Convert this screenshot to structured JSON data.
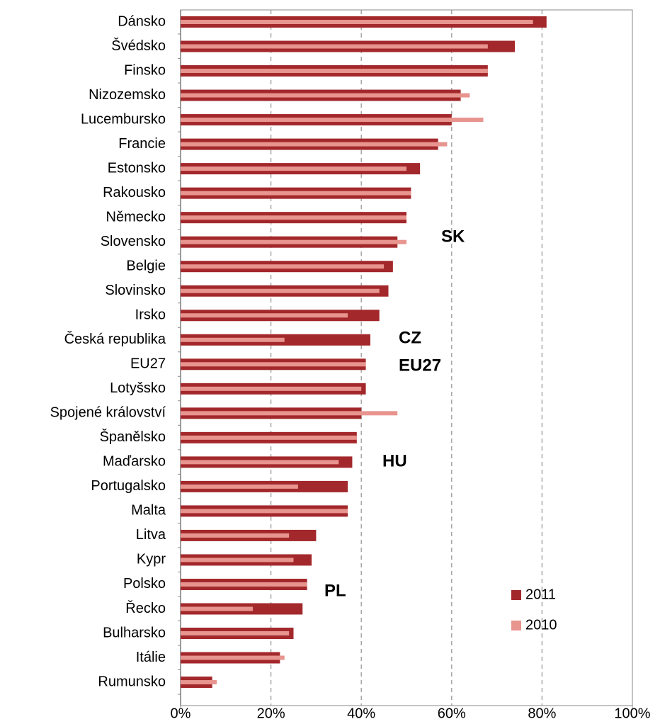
{
  "chart_data": {
    "type": "hbar",
    "categories": [
      "Dánsko",
      "Švédsko",
      "Finsko",
      "Nizozemsko",
      "Lucembursko",
      "Francie",
      "Estonsko",
      "Rakousko",
      "Německo",
      "Slovensko",
      "Belgie",
      "Slovinsko",
      "Irsko",
      "Česká republika",
      "EU27",
      "Lotyšsko",
      "Spojené království",
      "Španělsko",
      "Maďarsko",
      "Portugalsko",
      "Malta",
      "Litva",
      "Kypr",
      "Polsko",
      "Řecko",
      "Bulharsko",
      "Itálie",
      "Rumunsko"
    ],
    "series": [
      {
        "name": "2011",
        "color": "#a3282b",
        "values": [
          81,
          74,
          68,
          62,
          60,
          57,
          53,
          51,
          50,
          48,
          47,
          46,
          44,
          42,
          41,
          41,
          40,
          39,
          38,
          37,
          37,
          30,
          29,
          28,
          27,
          25,
          22,
          7
        ]
      },
      {
        "name": "2010",
        "color": "#e8948f",
        "values": [
          78,
          68,
          68,
          64,
          67,
          59,
          50,
          51,
          50,
          50,
          45,
          44,
          37,
          23,
          41,
          40,
          48,
          39,
          35,
          26,
          37,
          24,
          25,
          28,
          16,
          24,
          23,
          8
        ]
      }
    ],
    "xlim": [
      0,
      100
    ],
    "xticks": [
      {
        "value": 0,
        "label": "0%"
      },
      {
        "value": 20,
        "label": "20%"
      },
      {
        "value": 40,
        "label": "40%"
      },
      {
        "value": 60,
        "label": "60%"
      },
      {
        "value": 80,
        "label": "80%"
      },
      {
        "value": 100,
        "label": "100%"
      }
    ],
    "grid": true,
    "legend": "lower right",
    "annotations": [
      {
        "text": "SK",
        "color": "#000000"
      },
      {
        "text": "CZ",
        "color": "#000000"
      },
      {
        "text": "EU27",
        "color": "#a3132b"
      },
      {
        "text": "HU",
        "color": "#000000"
      },
      {
        "text": "PL",
        "color": "#000000"
      }
    ]
  }
}
